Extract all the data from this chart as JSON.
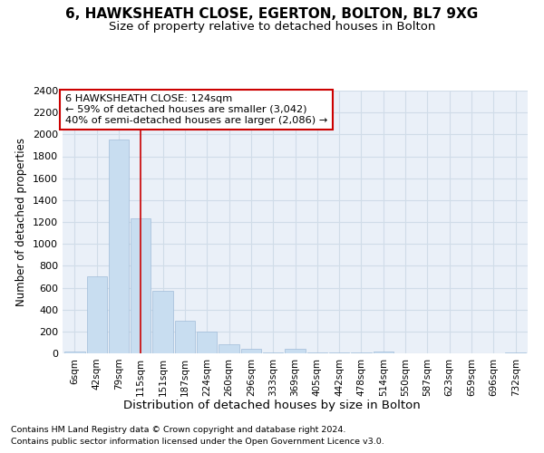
{
  "title1": "6, HAWKSHEATH CLOSE, EGERTON, BOLTON, BL7 9XG",
  "title2": "Size of property relative to detached houses in Bolton",
  "xlabel": "Distribution of detached houses by size in Bolton",
  "ylabel": "Number of detached properties",
  "annotation_line1": "6 HAWKSHEATH CLOSE: 124sqm",
  "annotation_line2": "← 59% of detached houses are smaller (3,042)",
  "annotation_line3": "40% of semi-detached houses are larger (2,086) →",
  "footnote1": "Contains HM Land Registry data © Crown copyright and database right 2024.",
  "footnote2": "Contains public sector information licensed under the Open Government Licence v3.0.",
  "bar_color": "#c8ddf0",
  "bar_edge_color": "#a0bcd8",
  "grid_color": "#d0dce8",
  "background_color": "#eaf0f8",
  "vline_color": "#cc0000",
  "x_labels": [
    "6sqm",
    "42sqm",
    "79sqm",
    "115sqm",
    "151sqm",
    "187sqm",
    "224sqm",
    "260sqm",
    "296sqm",
    "333sqm",
    "369sqm",
    "405sqm",
    "442sqm",
    "478sqm",
    "514sqm",
    "550sqm",
    "587sqm",
    "623sqm",
    "659sqm",
    "696sqm",
    "732sqm"
  ],
  "bar_values": [
    20,
    700,
    1950,
    1230,
    575,
    300,
    200,
    80,
    45,
    5,
    40,
    5,
    5,
    5,
    15,
    3,
    2,
    1,
    1,
    1,
    10
  ],
  "vline_x": 3.0,
  "ylim": [
    0,
    2400
  ],
  "yticks": [
    0,
    200,
    400,
    600,
    800,
    1000,
    1200,
    1400,
    1600,
    1800,
    2000,
    2200,
    2400
  ],
  "fig_width": 6.0,
  "fig_height": 5.0,
  "dpi": 100
}
